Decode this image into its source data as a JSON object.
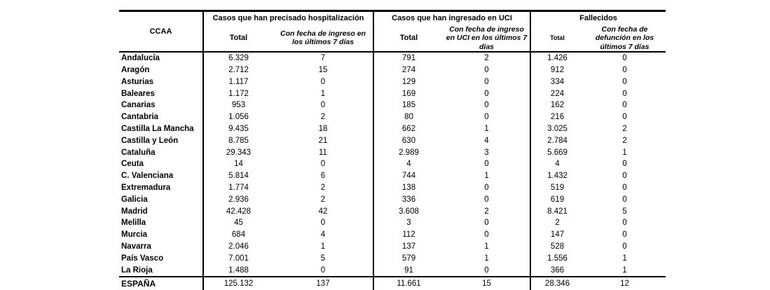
{
  "chart_data": {
    "type": "table",
    "header": {
      "corner": "CCAA",
      "groups": [
        {
          "title": "Casos que han precisado hospitalización",
          "sub": [
            "Total",
            "Con fecha de ingreso en los últimos 7 días"
          ]
        },
        {
          "title": "Casos que han ingresado en UCI",
          "sub": [
            "Total",
            "Con fecha de ingreso en UCI en los últimos 7 días"
          ]
        },
        {
          "title": "Fallecidos",
          "sub": [
            "Total",
            "Con fecha de defunción en los últimos 7 días"
          ]
        }
      ]
    },
    "columns": [
      "CCAA",
      "Hospitalización Total",
      "Hospitalización con fecha de ingreso en los últimos 7 días",
      "UCI Total",
      "UCI con fecha de ingreso en los últimos 7 días",
      "Fallecidos Total",
      "Fallecidos con fecha de defunción en los últimos 7 días"
    ],
    "rows": [
      [
        "Andalucía",
        "6.329",
        "7",
        "791",
        "2",
        "1.426",
        "0"
      ],
      [
        "Aragón",
        "2.712",
        "15",
        "274",
        "0",
        "912",
        "0"
      ],
      [
        "Asturias",
        "1.117",
        "0",
        "129",
        "0",
        "334",
        "0"
      ],
      [
        "Baleares",
        "1.172",
        "1",
        "169",
        "0",
        "224",
        "0"
      ],
      [
        "Canarias",
        "953",
        "0",
        "185",
        "0",
        "162",
        "0"
      ],
      [
        "Cantabria",
        "1.056",
        "2",
        "80",
        "0",
        "216",
        "0"
      ],
      [
        "Castilla La Mancha",
        "9.435",
        "18",
        "662",
        "1",
        "3.025",
        "2"
      ],
      [
        "Castilla y León",
        "8.785",
        "21",
        "630",
        "4",
        "2.784",
        "2"
      ],
      [
        "Cataluña",
        "29.343",
        "11",
        "2.989",
        "3",
        "5.669",
        "1"
      ],
      [
        "Ceuta",
        "14",
        "0",
        "4",
        "0",
        "4",
        "0"
      ],
      [
        "C. Valenciana",
        "5.814",
        "6",
        "744",
        "1",
        "1.432",
        "0"
      ],
      [
        "Extremadura",
        "1.774",
        "2",
        "138",
        "0",
        "519",
        "0"
      ],
      [
        "Galicia",
        "2.936",
        "2",
        "336",
        "0",
        "619",
        "0"
      ],
      [
        "Madrid",
        "42.428",
        "42",
        "3.608",
        "2",
        "8.421",
        "5"
      ],
      [
        "Melilla",
        "45",
        "0",
        "3",
        "0",
        "2",
        "0"
      ],
      [
        "Murcia",
        "684",
        "4",
        "112",
        "0",
        "147",
        "0"
      ],
      [
        "Navarra",
        "2.046",
        "1",
        "137",
        "1",
        "528",
        "0"
      ],
      [
        "País Vasco",
        "7.001",
        "5",
        "579",
        "1",
        "1.556",
        "1"
      ],
      [
        "La Rioja",
        "1.488",
        "0",
        "91",
        "0",
        "366",
        "1"
      ]
    ],
    "total_row": {
      "label": "ESPAÑA",
      "values": [
        "125.132",
        "137",
        "11.661",
        "15",
        "28.346",
        "12"
      ]
    },
    "colors": {
      "text": "#000000",
      "border": "#000000",
      "background": "#ffffff"
    }
  }
}
